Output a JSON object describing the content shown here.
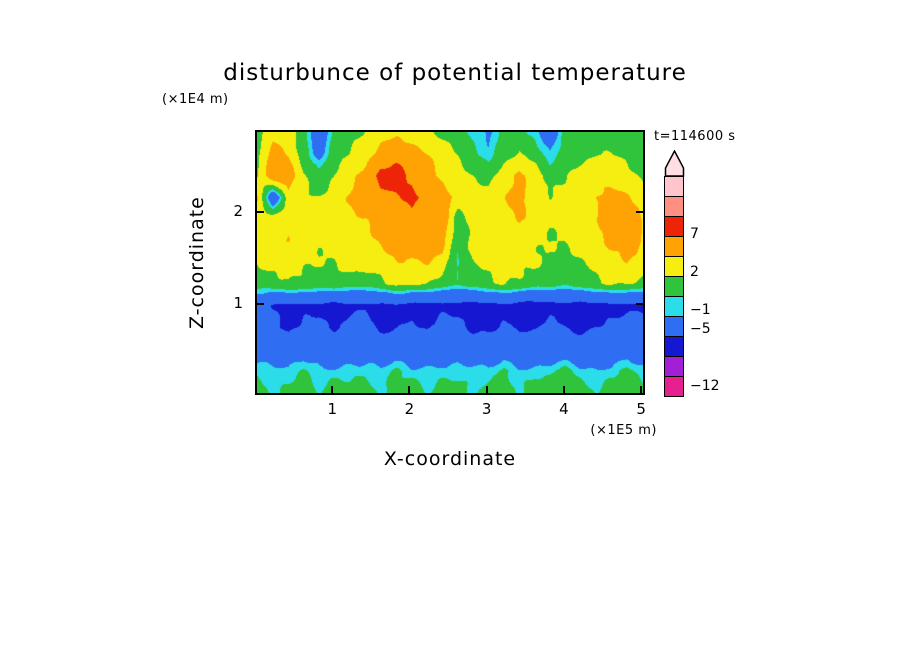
{
  "title": "disturbunce of potential temperature",
  "time_label": "t=114600 s",
  "axes": {
    "x_label": "X-coordinate",
    "x_unit": "(×1E5 m)",
    "y_label": "Z-coordinate",
    "y_unit": "(×1E4 m)",
    "x_tick_labels": [
      "1",
      "2",
      "3",
      "4",
      "5"
    ],
    "x_tick_values": [
      1,
      2,
      3,
      4,
      5
    ],
    "y_tick_labels": [
      "1",
      "2"
    ],
    "y_tick_values": [
      1,
      2
    ]
  },
  "chart_data": {
    "type": "heatmap",
    "title": "disturbunce of potential temperature",
    "xlabel": "X-coordinate (×1E5 m)",
    "ylabel": "Z-coordinate (×1E4 m)",
    "time_s": 114600,
    "x_range": [
      0,
      5.05
    ],
    "z_range": [
      0,
      2.9
    ],
    "grid_rows_order": "top-to-bottom",
    "contour_levels": [
      -12,
      -9,
      -7,
      -5,
      -1,
      0,
      2,
      4,
      7,
      10,
      13,
      16
    ],
    "colors": [
      "#e6218f",
      "#a21fd6",
      "#1617d1",
      "#2f6df2",
      "#2bdce9",
      "#2fc43c",
      "#f6ee10",
      "#ffa305",
      "#ee2409",
      "#ff8f80",
      "#ffc4cc"
    ],
    "values": [
      [
        1,
        3,
        2.5,
        1,
        -3,
        1,
        1.5,
        2,
        3,
        3.5,
        3,
        2.5,
        1.5,
        1,
        -0.5,
        -1.5,
        1,
        1,
        -0.5,
        -3,
        0.5,
        1,
        1.5,
        1,
        1,
        1
      ],
      [
        1.5,
        5,
        4,
        1,
        -2,
        1,
        2,
        3,
        5,
        6,
        5,
        4,
        3,
        2,
        0.5,
        -0.5,
        1,
        2,
        1,
        -1,
        1,
        1.5,
        2,
        2,
        1.5,
        1
      ],
      [
        2,
        6,
        5.5,
        2,
        0.5,
        2,
        3.5,
        5,
        8,
        8.5,
        6,
        5,
        3.5,
        3,
        2,
        1,
        3,
        4.5,
        3,
        1.5,
        2,
        3,
        3.5,
        3,
        2.5,
        2
      ],
      [
        4,
        -4,
        3,
        2.5,
        2,
        3,
        4,
        5,
        6,
        6.5,
        8,
        6.5,
        5,
        3,
        2.5,
        3,
        4,
        5,
        3,
        2,
        2.5,
        3,
        4,
        5,
        4.5,
        3
      ],
      [
        3,
        3.5,
        3,
        2.5,
        2.5,
        3,
        3.5,
        4,
        5,
        5,
        6,
        6.5,
        6,
        1,
        3,
        3,
        3.5,
        4,
        3,
        2.5,
        2.5,
        3,
        4,
        5,
        5,
        4
      ],
      [
        2.5,
        3,
        4,
        3,
        2.5,
        2.5,
        3,
        3.5,
        4,
        5,
        5,
        6,
        5,
        0.5,
        2.5,
        3,
        3.5,
        3,
        2.5,
        2,
        2,
        2.5,
        3,
        5,
        5.5,
        4
      ],
      [
        2,
        2.5,
        3,
        2.5,
        2,
        2,
        2.5,
        3,
        3,
        4,
        4,
        4,
        3,
        -0.5,
        2,
        2.5,
        3,
        2.5,
        2,
        1.5,
        1.5,
        2,
        2.5,
        3,
        4,
        3
      ],
      [
        1,
        1.5,
        2,
        1.5,
        1,
        1.5,
        1,
        1,
        1.5,
        2.5,
        2,
        2,
        1,
        0.5,
        1,
        1.5,
        2,
        1.5,
        1,
        1,
        0.5,
        1,
        1.5,
        2,
        2,
        1.5
      ],
      [
        -3,
        -5.5,
        -6,
        -5.5,
        -5.5,
        -6,
        -5.5,
        -5.5,
        -6,
        -5.5,
        -6,
        -6,
        -5.5,
        -6,
        -6.5,
        -6,
        -5.5,
        -6,
        -6.5,
        -6,
        -6,
        -6.5,
        -6,
        -5.5,
        -5.5,
        -5.5
      ],
      [
        -3,
        -4,
        -5.5,
        -4.5,
        -4,
        -5.5,
        -4.5,
        -4,
        -5.5,
        -5,
        -4.5,
        -5.5,
        -4.5,
        -4,
        -5.5,
        -5.5,
        -4.5,
        -5.5,
        -5.5,
        -4.5,
        -5,
        -5.5,
        -5,
        -4.5,
        -4,
        -4
      ],
      [
        -2,
        -2.5,
        -3,
        -2.5,
        -2,
        -3,
        -2.5,
        -2,
        -3,
        -3,
        -2.5,
        -3,
        -2.5,
        -2,
        -3,
        -3,
        -2.5,
        -3,
        -3,
        -2.5,
        -3,
        -3.5,
        -3,
        -2.5,
        -2,
        -2.5
      ],
      [
        -0.5,
        -0.7,
        -0.8,
        0.5,
        -0.7,
        -0.8,
        -0.5,
        -0.7,
        -0.8,
        0.5,
        -0.7,
        -0.5,
        -0.7,
        -0.8,
        -0.5,
        -0.7,
        0.5,
        -0.8,
        -0.7,
        -0.5,
        0.5,
        -0.7,
        -0.8,
        -0.5,
        0.5,
        -0.7
      ],
      [
        1,
        -0.3,
        1,
        1.2,
        -0.5,
        1,
        0.5,
        1.2,
        -0.3,
        1,
        1.2,
        -0.5,
        0.5,
        1.2,
        -0.3,
        1,
        1,
        -0.5,
        1.2,
        1,
        0.5,
        1.2,
        -0.3,
        1,
        1.2,
        0.5
      ]
    ],
    "colorbar": {
      "labels": [
        "7",
        "2",
        "−1",
        "−5",
        "−12"
      ],
      "label_levels": [
        7,
        2,
        -1,
        -5,
        -12
      ],
      "arrow_color": "#ffdfe4"
    }
  }
}
